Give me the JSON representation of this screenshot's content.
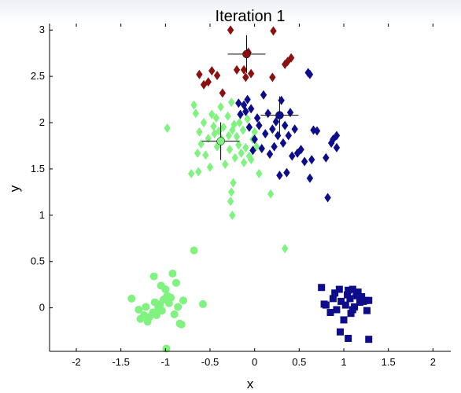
{
  "chart_data": {
    "type": "scatter",
    "title": "Iteration 1",
    "xlabel": "x",
    "ylabel": "y",
    "xlim": [
      -2.3,
      2.2
    ],
    "ylim": [
      -0.47,
      3.07
    ],
    "x_ticks": [
      -2,
      -1.5,
      -1,
      -0.5,
      0,
      0.5,
      1,
      1.5,
      2
    ],
    "x_tick_labels": [
      "-2",
      "-1.5",
      "-1",
      "-0.5",
      "0",
      "0.5",
      "1",
      "1.5",
      "2"
    ],
    "y_ticks": [
      0,
      0.5,
      1,
      1.5,
      2,
      2.5,
      3
    ],
    "y_tick_labels": [
      "0",
      "0.5",
      "1",
      "1.5",
      "2",
      "2.5",
      "3"
    ],
    "grid": false,
    "series": [
      {
        "marker": "circle",
        "color": "#7ff27f",
        "points": [
          [
            -1.38,
            0.1
          ],
          [
            -1.3,
            -0.02
          ],
          [
            -1.28,
            -0.12
          ],
          [
            -1.24,
            -0.08
          ],
          [
            -1.22,
            0.01
          ],
          [
            -1.2,
            -0.15
          ],
          [
            -1.18,
            -0.1
          ],
          [
            -1.14,
            -0.05
          ],
          [
            -1.13,
            0.34
          ],
          [
            -1.12,
            0.06
          ],
          [
            -1.1,
            -0.08
          ],
          [
            -1.08,
            0.0
          ],
          [
            -1.06,
            0.04
          ],
          [
            -1.05,
            0.24
          ],
          [
            -1.04,
            -0.03
          ],
          [
            -1.02,
            0.09
          ],
          [
            -1.0,
            0.2
          ],
          [
            -1.0,
            0.1
          ],
          [
            -0.98,
            0.13
          ],
          [
            -0.96,
            0.05
          ],
          [
            -0.94,
            0.11
          ],
          [
            -0.92,
            0.37
          ],
          [
            -0.9,
            -0.07
          ],
          [
            -0.88,
            0.27
          ],
          [
            -0.86,
            0.01
          ],
          [
            -0.84,
            -0.17
          ],
          [
            -0.82,
            -0.18
          ],
          [
            -0.8,
            0.08
          ],
          [
            -0.58,
            0.04
          ],
          [
            -0.68,
            0.62
          ],
          [
            -0.99,
            -0.44
          ]
        ]
      },
      {
        "marker": "diamond",
        "color": "#7ff27f",
        "points": [
          [
            -0.98,
            1.94
          ],
          [
            -0.68,
            2.19
          ],
          [
            -0.66,
            2.1
          ],
          [
            -0.64,
            1.67
          ],
          [
            -0.62,
            1.9
          ],
          [
            -0.6,
            1.77
          ],
          [
            -0.57,
            2.0
          ],
          [
            -0.55,
            1.65
          ],
          [
            -0.52,
            1.83
          ],
          [
            -0.5,
            1.52
          ],
          [
            -0.48,
            2.09
          ],
          [
            -0.46,
            1.96
          ],
          [
            -0.45,
            1.88
          ],
          [
            -0.43,
            2.05
          ],
          [
            -0.42,
            1.74
          ],
          [
            -0.4,
            1.91
          ],
          [
            -0.38,
            2.17
          ],
          [
            -0.37,
            1.82
          ],
          [
            -0.35,
            1.95
          ],
          [
            -0.33,
            1.55
          ],
          [
            -0.3,
            2.07
          ],
          [
            -0.29,
            1.86
          ],
          [
            -0.28,
            1.71
          ],
          [
            -0.26,
            2.22
          ],
          [
            -0.25,
            1.92
          ],
          [
            -0.23,
            1.98
          ],
          [
            -0.22,
            1.62
          ],
          [
            -0.2,
            1.85
          ],
          [
            -0.18,
            1.76
          ],
          [
            -0.17,
            2.0
          ],
          [
            -0.15,
            1.67
          ],
          [
            -0.13,
            1.92
          ],
          [
            -0.12,
            1.57
          ],
          [
            -0.1,
            1.73
          ],
          [
            -0.08,
            2.04
          ],
          [
            -0.06,
            1.64
          ],
          [
            -0.04,
            1.6
          ],
          [
            -0.02,
            1.82
          ],
          [
            0.0,
            1.9
          ],
          [
            0.02,
            1.74
          ],
          [
            0.05,
            1.45
          ],
          [
            -0.24,
            1.35
          ],
          [
            -0.26,
            1.25
          ],
          [
            -0.27,
            1.15
          ],
          [
            -0.25,
            1.0
          ],
          [
            0.18,
            1.23
          ],
          [
            0.34,
            0.64
          ],
          [
            -0.63,
            1.47
          ],
          [
            -0.71,
            1.45
          ]
        ]
      },
      {
        "marker": "diamond",
        "color": "#8b1111",
        "points": [
          [
            -0.62,
            2.52
          ],
          [
            -0.57,
            2.41
          ],
          [
            -0.52,
            2.44
          ],
          [
            -0.48,
            2.56
          ],
          [
            -0.42,
            2.51
          ],
          [
            -0.36,
            2.32
          ],
          [
            -0.27,
            3.0
          ],
          [
            -0.2,
            2.57
          ],
          [
            -0.12,
            2.57
          ],
          [
            -0.1,
            2.49
          ],
          [
            -0.07,
            2.76
          ],
          [
            -0.04,
            2.53
          ],
          [
            0.21,
            2.99
          ],
          [
            0.2,
            2.49
          ],
          [
            0.34,
            2.63
          ],
          [
            0.37,
            2.66
          ],
          [
            0.41,
            2.7
          ]
        ]
      },
      {
        "marker": "diamond",
        "color": "#0d0d8c",
        "points": [
          [
            -0.18,
            2.21
          ],
          [
            -0.16,
            2.09
          ],
          [
            -0.12,
            2.19
          ],
          [
            -0.1,
            2.12
          ],
          [
            -0.08,
            2.25
          ],
          [
            -0.06,
            1.95
          ],
          [
            -0.04,
            2.15
          ],
          [
            -0.02,
            1.7
          ],
          [
            0.0,
            1.82
          ],
          [
            0.03,
            2.05
          ],
          [
            0.05,
            1.97
          ],
          [
            0.08,
            1.72
          ],
          [
            0.1,
            2.3
          ],
          [
            0.12,
            1.88
          ],
          [
            0.15,
            2.1
          ],
          [
            0.17,
            1.66
          ],
          [
            0.2,
            1.93
          ],
          [
            0.22,
            1.74
          ],
          [
            0.24,
            2.01
          ],
          [
            0.26,
            1.86
          ],
          [
            0.28,
            1.43
          ],
          [
            0.3,
            2.24
          ],
          [
            0.32,
            1.78
          ],
          [
            0.34,
            1.97
          ],
          [
            0.36,
            1.46
          ],
          [
            0.38,
            1.86
          ],
          [
            0.4,
            2.11
          ],
          [
            0.42,
            1.64
          ],
          [
            0.45,
            1.93
          ],
          [
            0.48,
            1.67
          ],
          [
            0.52,
            1.71
          ],
          [
            0.56,
            1.58
          ],
          [
            0.6,
            2.54
          ],
          [
            0.62,
            2.52
          ],
          [
            0.64,
            1.6
          ],
          [
            0.62,
            1.4
          ],
          [
            0.66,
            1.92
          ],
          [
            0.7,
            1.91
          ],
          [
            0.8,
            1.62
          ],
          [
            0.82,
            1.19
          ],
          [
            0.86,
            1.78
          ],
          [
            0.88,
            1.82
          ],
          [
            0.92,
            1.86
          ],
          [
            0.92,
            1.73
          ]
        ]
      },
      {
        "marker": "square",
        "color": "#0d0d8c",
        "points": [
          [
            0.75,
            0.22
          ],
          [
            0.78,
            0.04
          ],
          [
            0.8,
            0.03
          ],
          [
            0.85,
            -0.05
          ],
          [
            0.88,
            0.1
          ],
          [
            0.9,
            0.16
          ],
          [
            0.92,
            -0.02
          ],
          [
            0.95,
            0.2
          ],
          [
            0.97,
            0.07
          ],
          [
            1.0,
            -0.13
          ],
          [
            1.02,
            0.03
          ],
          [
            1.04,
            0.14
          ],
          [
            1.05,
            0.19
          ],
          [
            1.07,
            0.1
          ],
          [
            1.08,
            -0.06
          ],
          [
            1.1,
            0.2
          ],
          [
            1.12,
            0.01
          ],
          [
            1.14,
            0.13
          ],
          [
            1.16,
            0.17
          ],
          [
            1.18,
            0.06
          ],
          [
            1.2,
            0.12
          ],
          [
            1.22,
            0.07
          ],
          [
            1.24,
            0.08
          ],
          [
            1.26,
            -0.03
          ],
          [
            1.28,
            0.08
          ],
          [
            0.96,
            -0.26
          ],
          [
            1.05,
            -0.33
          ],
          [
            1.28,
            -0.34
          ],
          [
            1.1,
            -0.02
          ]
        ]
      }
    ],
    "centroids": [
      {
        "x": -0.09,
        "y": 2.74,
        "marker": "circle",
        "color": "#8b1111"
      },
      {
        "x": -0.38,
        "y": 1.8,
        "marker": "circle",
        "color": "#7ff27f"
      },
      {
        "x": 0.28,
        "y": 2.08,
        "marker": "circle",
        "color": "#0d0d8c"
      }
    ]
  }
}
